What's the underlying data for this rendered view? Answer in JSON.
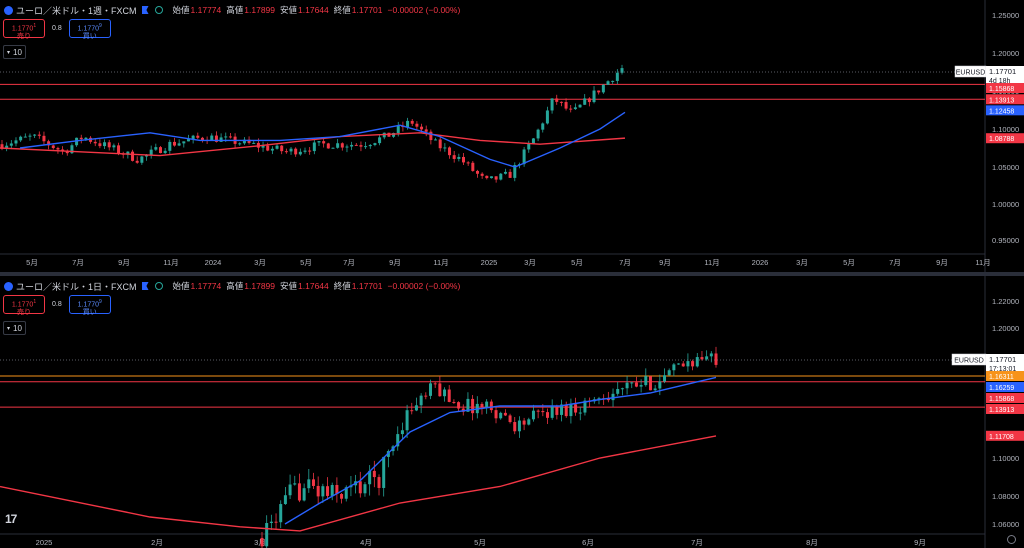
{
  "colors": {
    "up": "#26a69a",
    "down": "#f23645",
    "ma_fast": "#2962ff",
    "ma_slow": "#f23645",
    "level": "#f23645",
    "level_orange": "#f7931a"
  },
  "panes": [
    {
      "title": "ユーロ／米ドル・1週・FXCM",
      "ohlc": [
        {
          "label": "始値",
          "value": "1.17774"
        },
        {
          "label": "高値",
          "value": "1.17899"
        },
        {
          "label": "安値",
          "value": "1.17644"
        },
        {
          "label": "終値",
          "value": "1.17701"
        },
        {
          "label": "",
          "value": "−0.00002 (−0.00%)"
        }
      ],
      "sell_price": "1.1770",
      "sell_sup": "1",
      "sell_label": "売り",
      "spread": "0.8",
      "buy_price": "1.1770",
      "buy_sup": "9",
      "buy_label": "買い",
      "collapse_count": "10",
      "symbol_tag": "EURUSD",
      "last_price": "1.17701",
      "countdown": "4d 18h",
      "y_axis": [
        {
          "label": "1.25000",
          "value": 1.25
        },
        {
          "label": "1.20000",
          "value": 1.2
        },
        {
          "label": "1.15000",
          "value": 1.15
        },
        {
          "label": "1.10000",
          "value": 1.1
        },
        {
          "label": "1.05000",
          "value": 1.05
        },
        {
          "label": "1.00000",
          "value": 1.0
        },
        {
          "label": "0.95000",
          "value": 0.95
        }
      ],
      "x_axis": [
        "5月",
        "7月",
        "9月",
        "11月",
        "2024",
        "3月",
        "5月",
        "7月",
        "9月",
        "11月",
        "2025",
        "3月",
        "5月",
        "7月",
        "9月",
        "11月",
        "2026",
        "3月",
        "5月",
        "7月",
        "9月",
        "11月"
      ],
      "levels": [
        {
          "label": "1.15868",
          "value": 1.15868,
          "color": "#f23645"
        },
        {
          "label": "1.13913",
          "value": 1.13913,
          "color": "#f23645"
        },
        {
          "label": "1.12458",
          "value": 1.12458,
          "color": "#2962ff"
        },
        {
          "label": "1.08788",
          "value": 1.08788,
          "color": "#f23645"
        }
      ]
    },
    {
      "title": "ユーロ／米ドル・1日・FXCM",
      "ohlc": [
        {
          "label": "始値",
          "value": "1.17774"
        },
        {
          "label": "高値",
          "value": "1.17899"
        },
        {
          "label": "安値",
          "value": "1.17644"
        },
        {
          "label": "終値",
          "value": "1.17701"
        },
        {
          "label": "",
          "value": "−0.00002 (−0.00%)"
        }
      ],
      "sell_price": "1.1770",
      "sell_sup": "1",
      "sell_label": "売り",
      "spread": "0.8",
      "buy_price": "1.1770",
      "buy_sup": "9",
      "buy_label": "買い",
      "collapse_count": "10",
      "symbol_tag": "EURUSD",
      "last_price": "1.17701",
      "countdown": "17:13:01",
      "y_axis": [
        {
          "label": "1.22000",
          "value": 1.22
        },
        {
          "label": "1.20000",
          "value": 1.2
        },
        {
          "label": "1.10000",
          "value": 1.1
        },
        {
          "label": "1.08000",
          "value": 1.08
        },
        {
          "label": "1.06000",
          "value": 1.06
        }
      ],
      "x_axis": [
        "2025",
        "2月",
        "3月",
        "4月",
        "5月",
        "6月",
        "7月",
        "8月",
        "9月"
      ],
      "levels": [
        {
          "label": "1.16311",
          "value": 1.16311,
          "color": "#f7931a"
        },
        {
          "label": "1.16259",
          "value": 1.16259,
          "color": "#2962ff"
        },
        {
          "label": "1.15868",
          "value": 1.15868,
          "color": "#f23645"
        },
        {
          "label": "1.13913",
          "value": 1.13913,
          "color": "#f23645"
        },
        {
          "label": "1.11708",
          "value": 1.11708,
          "color": "#f23645"
        }
      ]
    }
  ]
}
